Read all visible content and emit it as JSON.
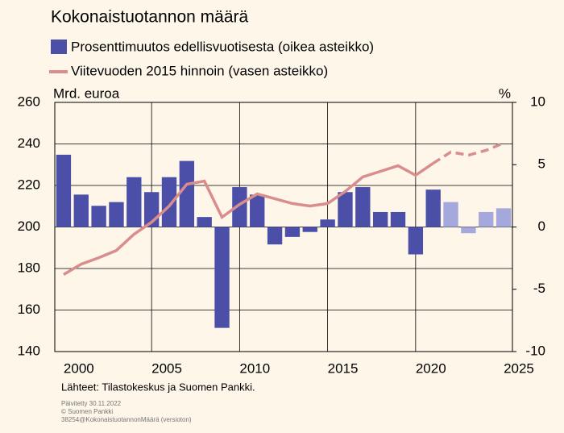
{
  "chart_data": {
    "type": "bar_line",
    "title": "Kokonaistuotannon määrä",
    "y_label": "Mrd. euroa",
    "y2_label": "%",
    "source": "Lähteet: Tilastokeskus ja Suomen Pankki.",
    "footnotes": [
      "Päivitetty 30.11.2022",
      "© Suomen Pankki",
      "38254@KokonaistuotannonMäärä (versioton)"
    ],
    "x": [
      2000,
      2001,
      2002,
      2003,
      2004,
      2005,
      2006,
      2007,
      2008,
      2009,
      2010,
      2011,
      2012,
      2013,
      2014,
      2015,
      2016,
      2017,
      2018,
      2019,
      2020,
      2021,
      2022,
      2023,
      2024,
      2025
    ],
    "series": [
      {
        "name": "Prosenttimuutos edellisvuotisesta (oikea asteikko)",
        "type": "bar",
        "axis": "y2",
        "color": "#4b4fa8",
        "forecast_color": "#a5a8dc",
        "values": [
          5.8,
          2.6,
          1.7,
          2.0,
          4.0,
          2.8,
          4.0,
          5.3,
          0.8,
          -8.1,
          3.2,
          2.6,
          -1.4,
          -0.8,
          -0.4,
          0.6,
          2.8,
          3.2,
          1.2,
          1.2,
          -2.2,
          3.0,
          2.0,
          -0.5,
          1.2,
          1.5
        ]
      },
      {
        "name": "Viitevuoden 2015 hinnoin (vasen asteikko)",
        "type": "line",
        "axis": "y",
        "color": "#d98d8d",
        "values": [
          177.1,
          182.1,
          185.2,
          188.7,
          196.5,
          202.3,
          210.1,
          220.6,
          222.1,
          204.7,
          210.9,
          215.9,
          213.6,
          211.3,
          210.1,
          211.3,
          217.1,
          224.1,
          226.8,
          229.5,
          224.9,
          230.7,
          236.1,
          234.6,
          236.9,
          240.4
        ]
      }
    ],
    "forecast_from": 2022,
    "xlim": [
      1999.5,
      2025.5
    ],
    "xticks": [
      2000,
      2005,
      2010,
      2015,
      2020,
      2025
    ],
    "ylim": [
      140,
      260
    ],
    "yticks": [
      140,
      160,
      180,
      200,
      220,
      240,
      260
    ],
    "y2lim": [
      -10,
      10
    ],
    "y2ticks": [
      -10,
      -5,
      0,
      5,
      10
    ],
    "grid": true
  }
}
